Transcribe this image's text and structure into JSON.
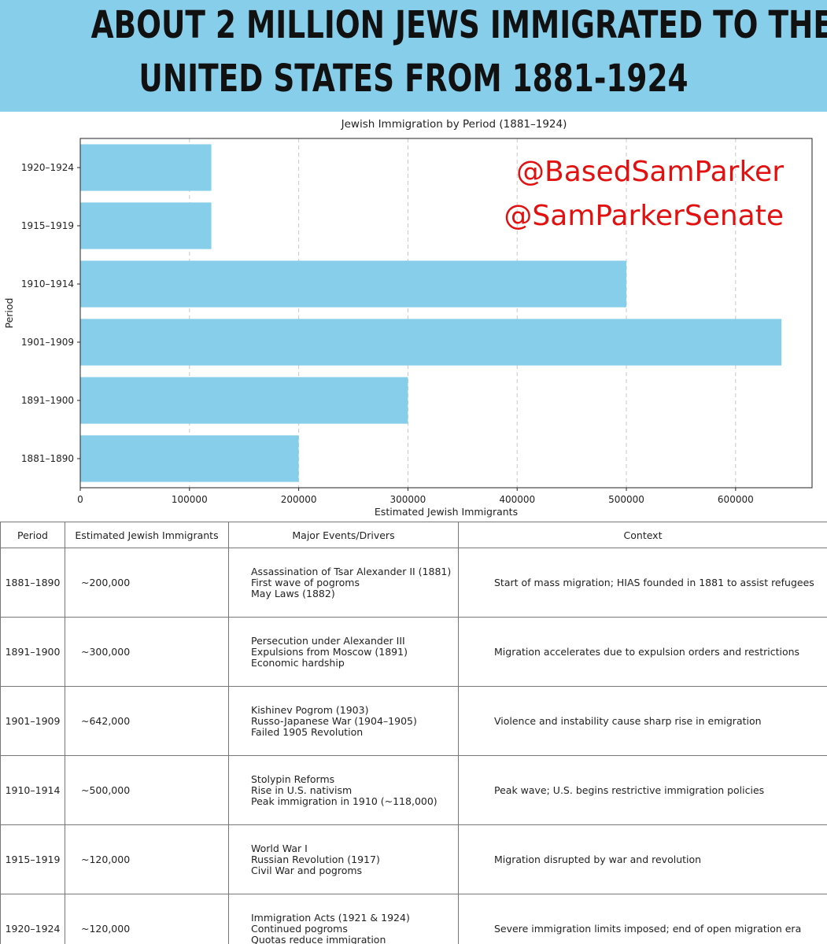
{
  "banner": {
    "line1": "About 2 million Jews immigrated to the",
    "line2": "United States from 1881-1924"
  },
  "colors": {
    "banner_bg": "#87ceeb",
    "bar": "#87ceeb",
    "handle": "#e31010"
  },
  "watermark": {
    "handle1": "@BasedSamParker",
    "handle2": "@SamParkerSenate"
  },
  "chart_data": {
    "type": "bar",
    "orientation": "horizontal",
    "title": "Jewish Immigration by Period (1881–1924)",
    "xlabel": "Estimated Jewish Immigrants",
    "ylabel": "Period",
    "categories": [
      "1881–1890",
      "1891–1900",
      "1901–1909",
      "1910–1914",
      "1915–1919",
      "1920–1924"
    ],
    "values": [
      200000,
      300000,
      642000,
      500000,
      120000,
      120000
    ],
    "xlim": [
      0,
      670000
    ],
    "xticks": [
      0,
      100000,
      200000,
      300000,
      400000,
      500000,
      600000
    ],
    "xtick_labels": [
      "0",
      "100000",
      "200000",
      "300000",
      "400000",
      "500000",
      "600000"
    ],
    "grid": "x-dashed"
  },
  "table": {
    "headers": [
      "Period",
      "Estimated Jewish Immigrants",
      "Major Events/Drivers",
      "Context"
    ],
    "rows": [
      {
        "period": "1881–1890",
        "estimate": "~200,000",
        "events": [
          "Assassination of Tsar Alexander II (1881)",
          "First wave of pogroms",
          "May Laws (1882)"
        ],
        "context": "Start of mass migration; HIAS founded in 1881 to assist refugees"
      },
      {
        "period": "1891–1900",
        "estimate": "~300,000",
        "events": [
          "Persecution under Alexander III",
          "Expulsions from Moscow (1891)",
          "Economic hardship"
        ],
        "context": "Migration accelerates due to expulsion orders and restrictions"
      },
      {
        "period": "1901–1909",
        "estimate": "~642,000",
        "events": [
          "Kishinev Pogrom (1903)",
          "Russo-Japanese War (1904–1905)",
          "Failed 1905 Revolution"
        ],
        "context": "Violence and instability cause sharp rise in emigration"
      },
      {
        "period": "1910–1914",
        "estimate": "~500,000",
        "events": [
          "Stolypin Reforms",
          "Rise in U.S. nativism",
          "Peak immigration in 1910 (~118,000)"
        ],
        "context": "Peak wave; U.S. begins restrictive immigration policies"
      },
      {
        "period": "1915–1919",
        "estimate": "~120,000",
        "events": [
          "World War I",
          "Russian Revolution (1917)",
          "Civil War and pogroms"
        ],
        "context": "Migration disrupted by war and revolution"
      },
      {
        "period": "1920–1924",
        "estimate": "~120,000",
        "events": [
          "Immigration Acts (1921 & 1924)",
          "Continued pogroms",
          "Quotas reduce immigration"
        ],
        "context": "Severe immigration limits imposed; end of open migration era"
      }
    ]
  }
}
